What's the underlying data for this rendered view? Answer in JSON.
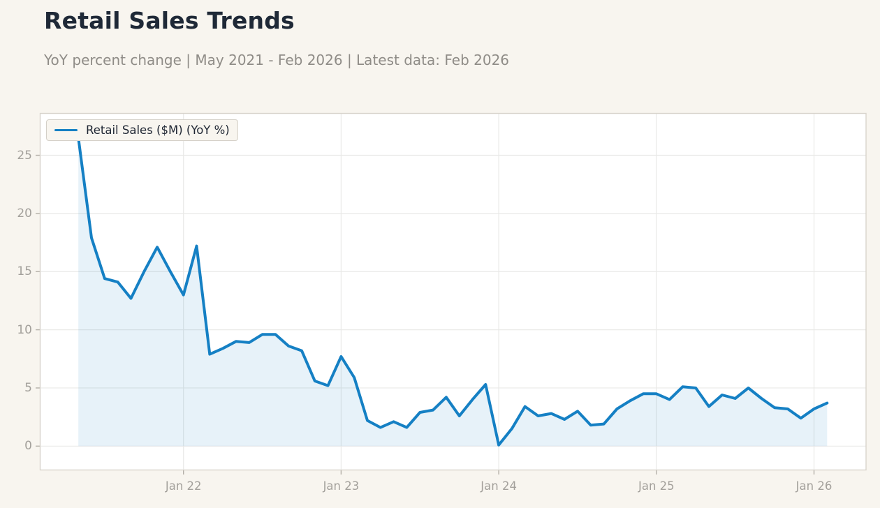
{
  "header": {
    "title": "Retail Sales Trends",
    "subtitle": "YoY percent change | May 2021 - Feb 2026 | Latest data: Feb 2026"
  },
  "legend": {
    "label": "Retail Sales ($M) (YoY %)"
  },
  "colors": {
    "page_background": "#f8f5ef",
    "plot_background": "#ffffff",
    "line": "#1580c4",
    "fill": "#1580c4",
    "fill_opacity": 0.1,
    "grid": "#e9e9e7",
    "plot_border": "#d8d4cc",
    "tick_mark": "#b3afa7",
    "tick_label": "#a3a09b",
    "title_text": "#1f2937",
    "subtitle_text": "#8f8c87"
  },
  "chart_data": {
    "type": "area",
    "title": "Retail Sales Trends",
    "subtitle": "YoY percent change | May 2021 - Feb 2026 | Latest data: Feb 2026",
    "series_name": "Retail Sales ($M) (YoY %)",
    "ylabel": "YoY percent change",
    "xlabel": "",
    "grid": true,
    "legend_position": "upper left",
    "baseline": 0,
    "categories": [
      "May 2021",
      "Jun 2021",
      "Jul 2021",
      "Aug 2021",
      "Sep 2021",
      "Oct 2021",
      "Nov 2021",
      "Dec 2021",
      "Jan 2022",
      "Feb 2022",
      "Mar 2022",
      "Apr 2022",
      "May 2022",
      "Jun 2022",
      "Jul 2022",
      "Aug 2022",
      "Sep 2022",
      "Oct 2022",
      "Nov 2022",
      "Dec 2022",
      "Jan 2023",
      "Feb 2023",
      "Mar 2023",
      "Apr 2023",
      "May 2023",
      "Jun 2023",
      "Jul 2023",
      "Aug 2023",
      "Sep 2023",
      "Oct 2023",
      "Nov 2023",
      "Dec 2023",
      "Jan 2024",
      "Feb 2024",
      "Mar 2024",
      "Apr 2024",
      "May 2024",
      "Jun 2024",
      "Jul 2024",
      "Aug 2024",
      "Sep 2024",
      "Oct 2024",
      "Nov 2024",
      "Dec 2024",
      "Jan 2025",
      "Feb 2025",
      "Mar 2025",
      "Apr 2025",
      "May 2025",
      "Jun 2025",
      "Jul 2025",
      "Aug 2025",
      "Sep 2025",
      "Oct 2025",
      "Nov 2025",
      "Dec 2025",
      "Jan 2026",
      "Feb 2026"
    ],
    "values": [
      26.5,
      17.9,
      14.4,
      14.1,
      12.7,
      15.0,
      17.1,
      15.0,
      13.0,
      17.2,
      7.9,
      8.4,
      9.0,
      8.9,
      9.6,
      9.6,
      8.6,
      8.2,
      5.6,
      5.2,
      7.7,
      5.9,
      2.2,
      1.6,
      2.1,
      1.6,
      2.9,
      3.1,
      4.2,
      2.6,
      4.0,
      5.3,
      0.1,
      1.5,
      3.4,
      2.6,
      2.8,
      2.3,
      3.0,
      1.8,
      1.9,
      3.2,
      3.9,
      4.5,
      4.5,
      4.0,
      5.1,
      5.0,
      3.4,
      4.4,
      4.1,
      5.0,
      4.1,
      3.3,
      3.2,
      2.4,
      3.2,
      3.7
    ],
    "x_ticks": [
      {
        "label": "Jan 22",
        "index": 8
      },
      {
        "label": "Jan 23",
        "index": 20
      },
      {
        "label": "Jan 24",
        "index": 32
      },
      {
        "label": "Jan 25",
        "index": 44
      },
      {
        "label": "Jan 26",
        "index": 56
      }
    ],
    "y_ticks": [
      0,
      5,
      10,
      15,
      20,
      25
    ],
    "ylim": [
      -2.05,
      28.6
    ],
    "xlim_index": [
      -2.91,
      59.96
    ]
  }
}
